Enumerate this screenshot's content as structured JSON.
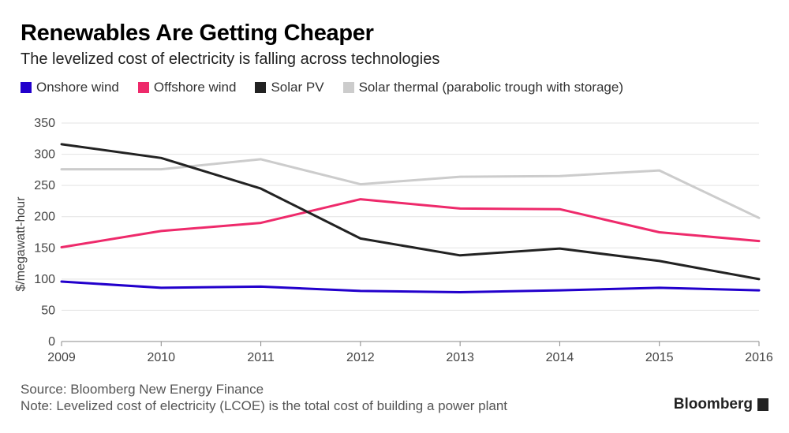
{
  "title": "Renewables Are Getting Cheaper",
  "subtitle": "The levelized cost of electricity is falling across technologies",
  "footer": {
    "source": "Source: Bloomberg New Energy Finance",
    "note": "Note: Levelized cost of electricity (LCOE) is the total cost of building a power plant"
  },
  "brand": "Bloomberg",
  "chart_data": {
    "type": "line",
    "title": "Renewables Are Getting Cheaper",
    "subtitle": "The levelized cost of electricity is falling across technologies",
    "xlabel": "",
    "ylabel": "$/megawatt-hour",
    "x": [
      2009,
      2010,
      2011,
      2012,
      2013,
      2014,
      2015,
      2016
    ],
    "ylim": [
      0,
      350
    ],
    "yticks": [
      0,
      50,
      100,
      150,
      200,
      250,
      300,
      350
    ],
    "grid": true,
    "legend": "top-left",
    "series": [
      {
        "name": "Onshore wind",
        "color": "#2200cc",
        "values": [
          96,
          86,
          88,
          81,
          79,
          82,
          86,
          82
        ]
      },
      {
        "name": "Offshore wind",
        "color": "#ee2a6b",
        "values": [
          151,
          177,
          190,
          228,
          213,
          212,
          175,
          161
        ]
      },
      {
        "name": "Solar PV",
        "color": "#222222",
        "values": [
          316,
          294,
          245,
          165,
          138,
          149,
          129,
          100
        ]
      },
      {
        "name": "Solar thermal (parabolic trough with storage)",
        "color": "#cccccc",
        "values": [
          276,
          276,
          292,
          252,
          264,
          265,
          274,
          198
        ]
      }
    ]
  }
}
